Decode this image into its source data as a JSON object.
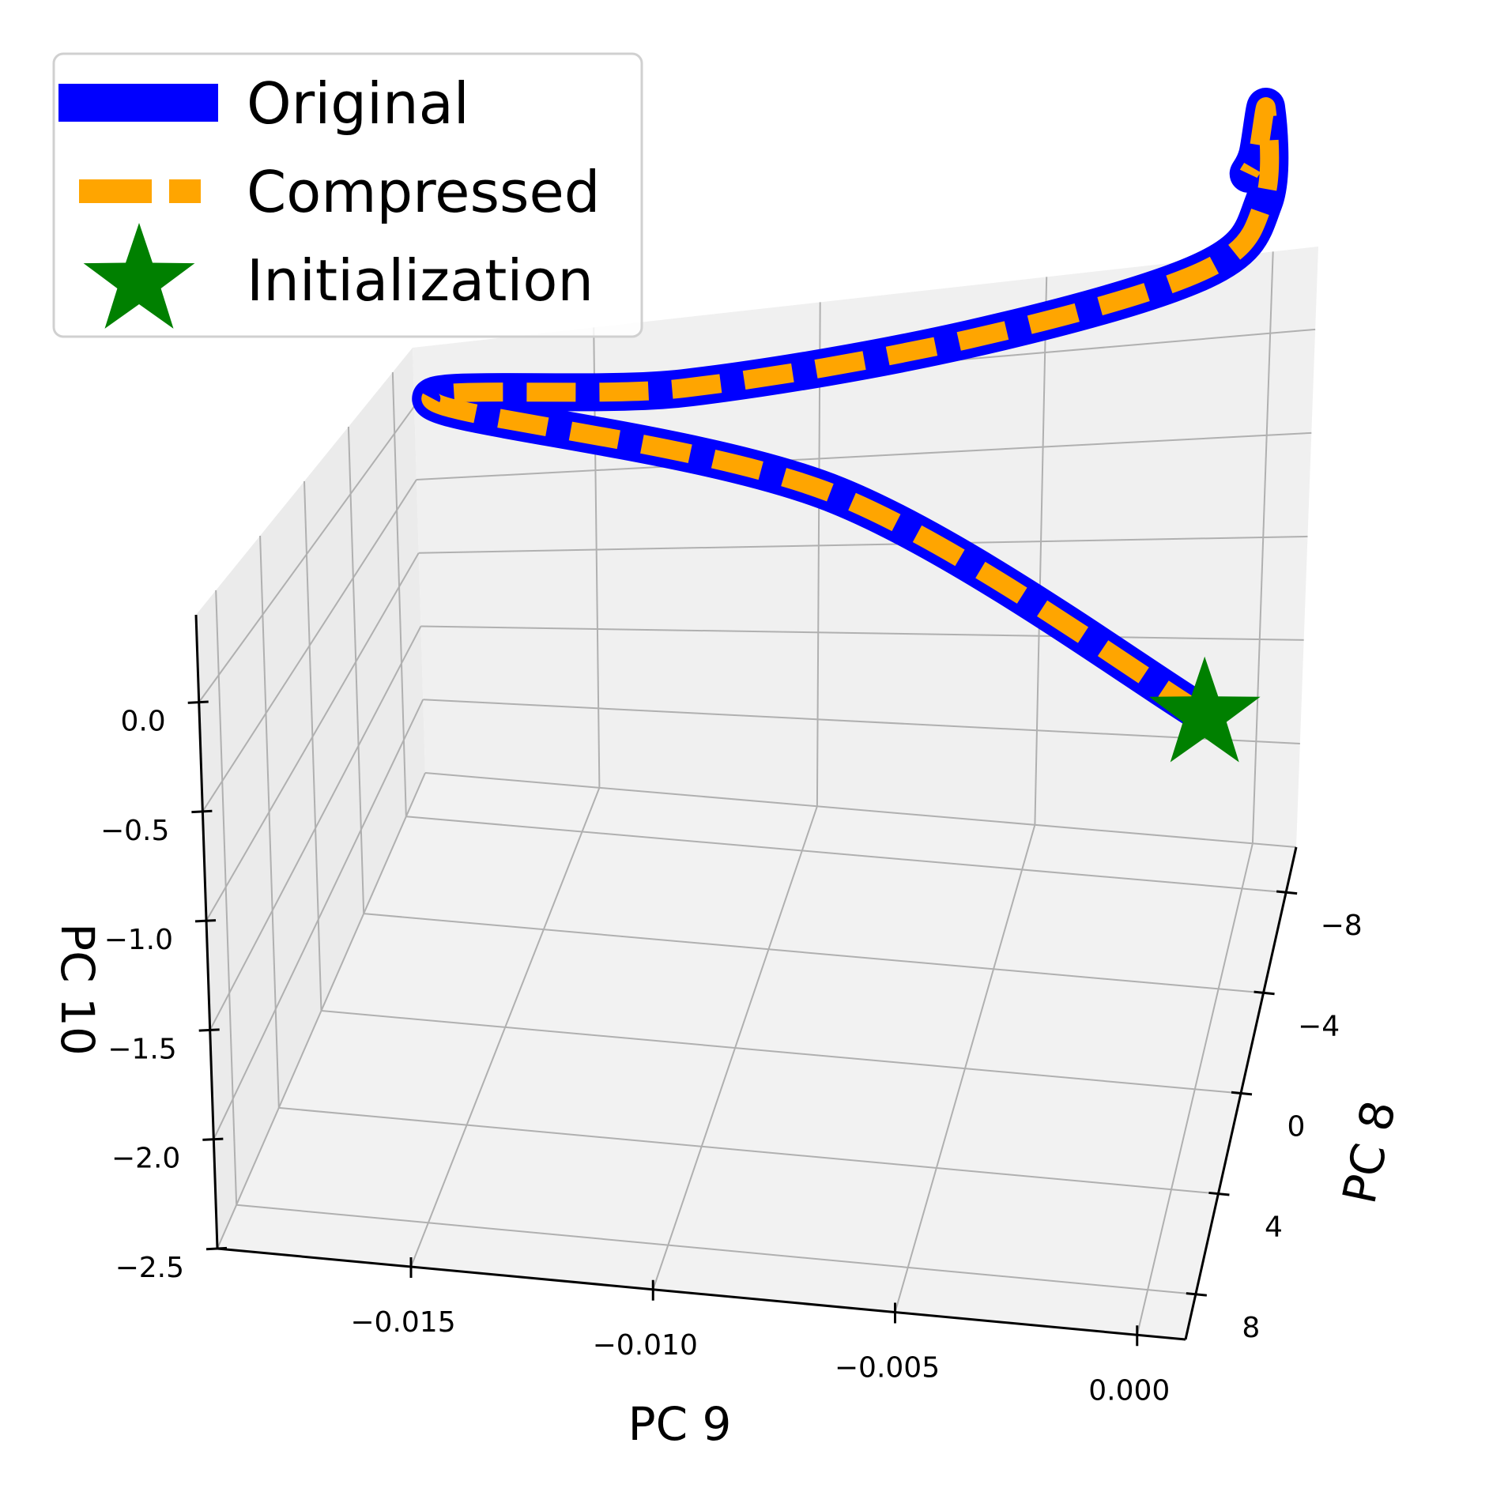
{
  "chart_data": {
    "type": "line",
    "projection": "3d",
    "x_axis": {
      "label": "PC 9",
      "ticks": [
        -0.015,
        -0.01,
        -0.005,
        0.0
      ],
      "tick_labels": [
        "−0.015",
        "−0.010",
        "−0.005",
        "0.000"
      ],
      "range": [
        -0.019,
        0.001
      ]
    },
    "y_axis": {
      "label": "PC 8",
      "ticks": [
        -8,
        -4,
        0,
        4,
        8
      ],
      "tick_labels": [
        "−8",
        "−4",
        "0",
        "4",
        "8"
      ],
      "range": [
        -9.8,
        9.8
      ]
    },
    "z_axis": {
      "label": "PC 10",
      "ticks": [
        0.0,
        -0.5,
        -1.0,
        -1.5,
        -2.0,
        -2.5
      ],
      "tick_labels": [
        "0.0",
        "−0.5",
        "−1.0",
        "−1.5",
        "−2.0",
        "−2.5"
      ],
      "range": [
        -2.5,
        0.4
      ]
    },
    "grid": true,
    "legend": {
      "position": "top-left",
      "entries": [
        {
          "label": "Original",
          "style": "solid",
          "color": "#0000ff"
        },
        {
          "label": "Compressed",
          "style": "dashed",
          "color": "#ffa500"
        },
        {
          "label": "Initialization",
          "style": "star",
          "color": "#008000"
        }
      ]
    },
    "series": [
      {
        "name": "Original",
        "color": "#0000ff",
        "style": "solid",
        "points": [
          {
            "x": 0.0,
            "y": -2.0,
            "z": -0.95
          },
          {
            "x": -0.009,
            "y": -7.0,
            "z": -0.4
          },
          {
            "x": -0.0185,
            "y": -9.5,
            "z": 0.05
          },
          {
            "x": -0.0125,
            "y": -7.5,
            "z": 0.2
          },
          {
            "x": -0.006,
            "y": -6.5,
            "z": 0.45
          },
          {
            "x": -0.0008,
            "y": -6.0,
            "z": 0.75
          },
          {
            "x": 0.0003,
            "y": -7.0,
            "z": 0.95
          },
          {
            "x": 0.0,
            "y": -8.5,
            "z": 1.25
          },
          {
            "x": -0.0003,
            "y": -9.2,
            "z": 0.95
          },
          {
            "x": -0.0006,
            "y": -9.8,
            "z": 0.8
          }
        ]
      },
      {
        "name": "Compressed",
        "color": "#ffa500",
        "style": "dashed",
        "points": [
          {
            "x": 0.0,
            "y": -2.0,
            "z": -0.95
          },
          {
            "x": -0.009,
            "y": -7.0,
            "z": -0.4
          },
          {
            "x": -0.0185,
            "y": -9.5,
            "z": 0.05
          },
          {
            "x": -0.0125,
            "y": -7.5,
            "z": 0.2
          },
          {
            "x": -0.006,
            "y": -6.5,
            "z": 0.45
          },
          {
            "x": -0.0008,
            "y": -6.0,
            "z": 0.75
          },
          {
            "x": 0.0003,
            "y": -7.0,
            "z": 0.95
          },
          {
            "x": 0.0,
            "y": -8.5,
            "z": 1.25
          },
          {
            "x": -0.0003,
            "y": -9.2,
            "z": 0.95
          },
          {
            "x": -0.0006,
            "y": -9.8,
            "z": 0.8
          }
        ]
      }
    ],
    "initialization": {
      "x": 0.0,
      "y": -2.0,
      "z": -0.95
    }
  }
}
